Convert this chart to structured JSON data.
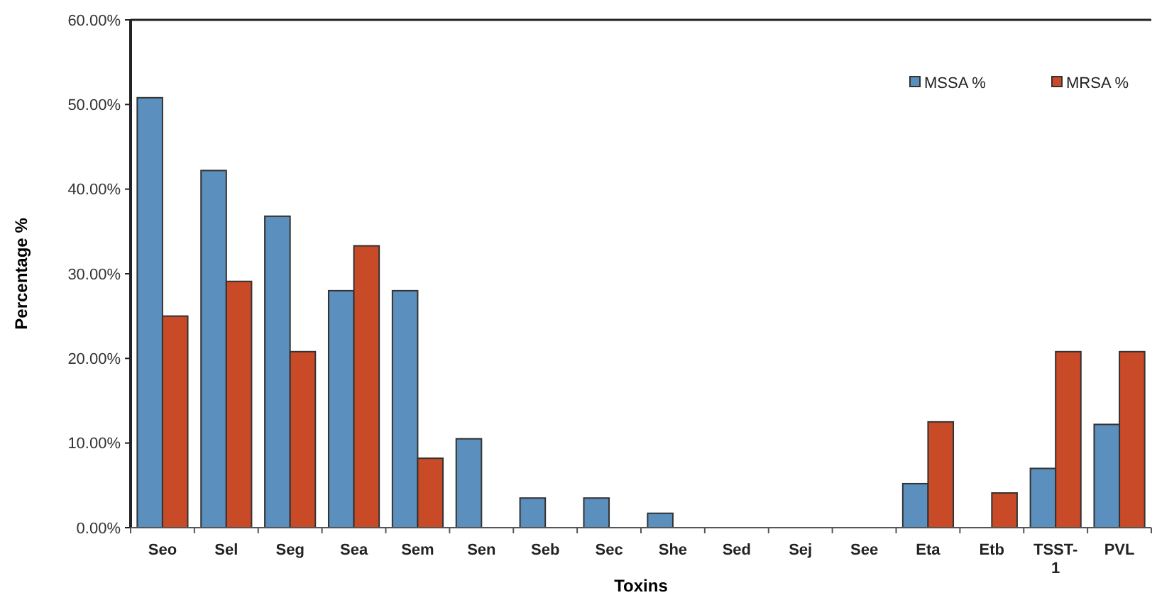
{
  "chart_data": {
    "type": "bar",
    "xlabel": "Toxins",
    "ylabel": "Percentage %",
    "categories": [
      "Seo",
      "Sel",
      "Seg",
      "Sea",
      "Sem",
      "Sen",
      "Seb",
      "Sec",
      "She",
      "Sed",
      "Sej",
      "See",
      "Eta",
      "Etb",
      "TSST-1",
      "PVL"
    ],
    "series": [
      {
        "name": "MSSA %",
        "color": "#5b8fbd",
        "values": [
          50.8,
          42.2,
          36.8,
          28.0,
          28.0,
          10.5,
          3.5,
          3.5,
          1.7,
          0,
          0,
          0,
          5.2,
          0,
          7.0,
          12.2
        ]
      },
      {
        "name": "MRSA %",
        "color": "#c94a26",
        "values": [
          25.0,
          29.1,
          20.8,
          33.3,
          8.2,
          0,
          0,
          0,
          0,
          0,
          0,
          0,
          12.5,
          4.1,
          20.8,
          20.8
        ]
      }
    ],
    "ylim": [
      0,
      60
    ],
    "yticks": [
      {
        "value": 0,
        "label": "0.00%"
      },
      {
        "value": 10,
        "label": "10.00%"
      },
      {
        "value": 20,
        "label": "20.00%"
      },
      {
        "value": 30,
        "label": "30.00%"
      },
      {
        "value": 40,
        "label": "40.00%"
      },
      {
        "value": 50,
        "label": "50.00%"
      },
      {
        "value": 60,
        "label": "60.00%"
      }
    ],
    "grid": false,
    "legend": "top right"
  }
}
